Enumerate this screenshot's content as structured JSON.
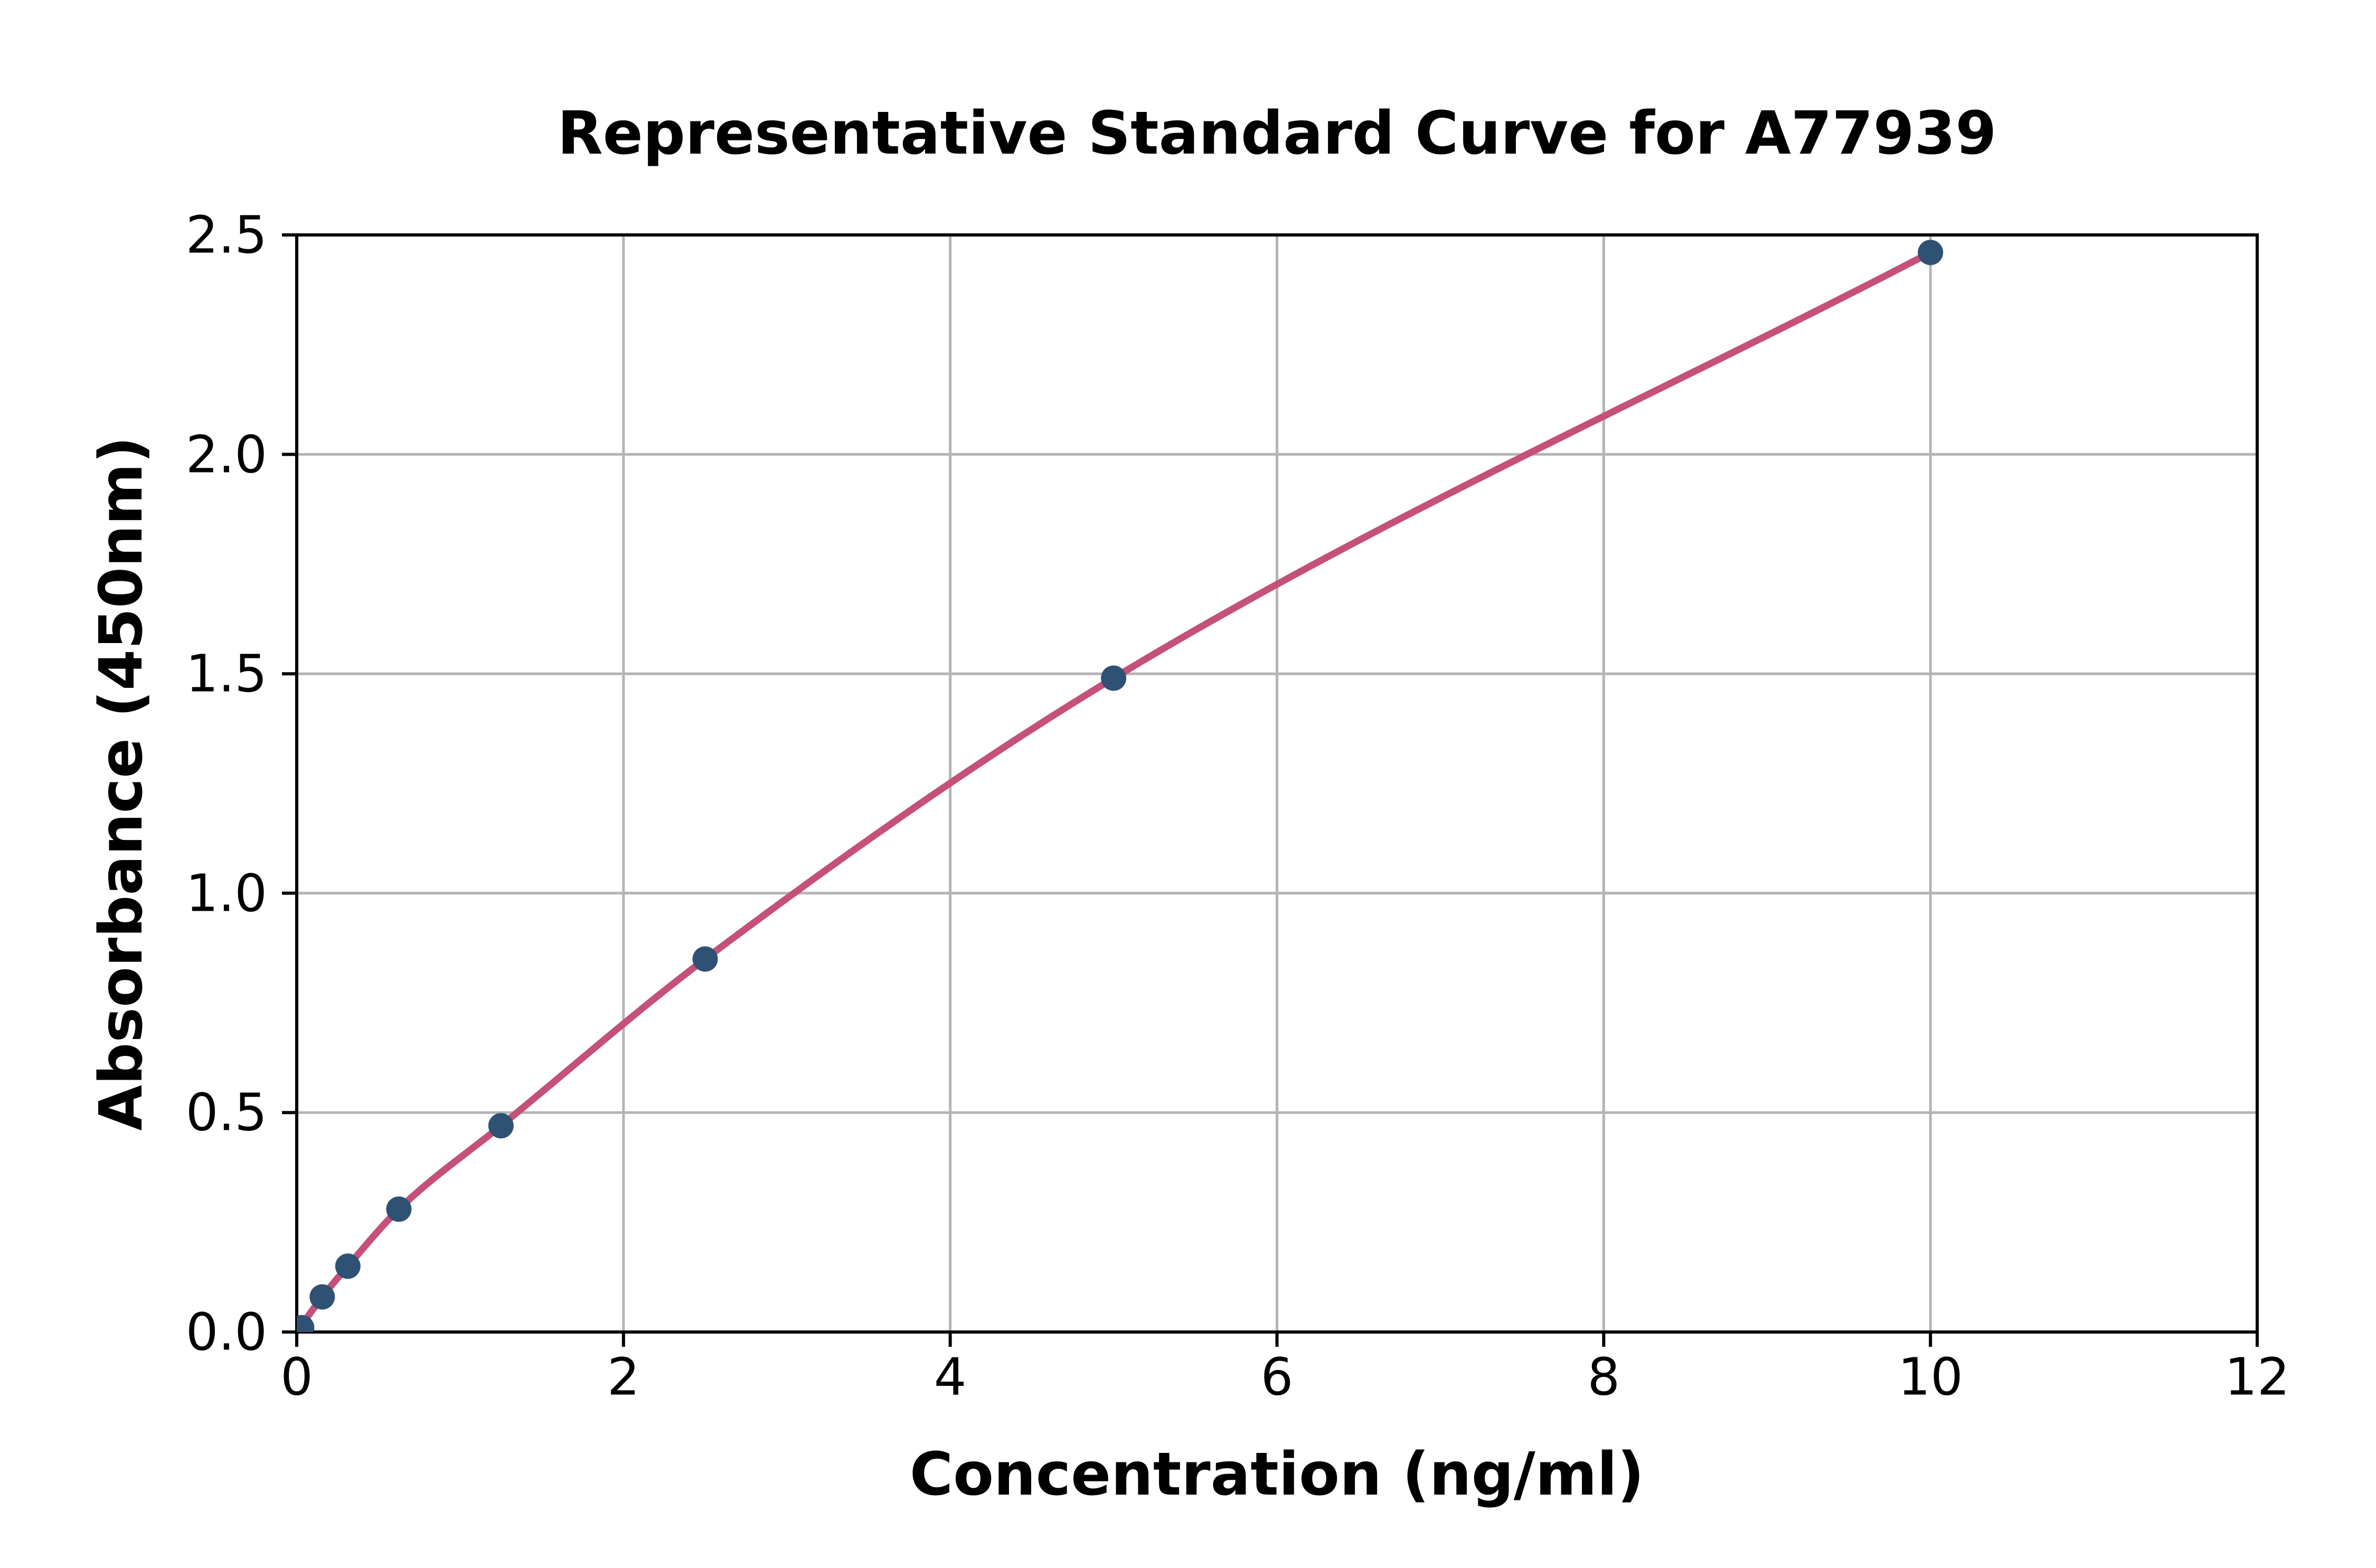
{
  "figure": {
    "background": "#ffffff"
  },
  "chart_data": {
    "type": "scatter",
    "title": "Representative Standard Curve for A77939",
    "xlabel": "Concentration (ng/ml)",
    "ylabel": "Absorbance (450nm)",
    "xlim": [
      0,
      12
    ],
    "ylim": [
      0,
      2.5
    ],
    "grid": true,
    "legend": "none",
    "xticks": {
      "values": [
        0,
        2,
        4,
        6,
        8,
        10,
        12
      ],
      "labels": [
        "0",
        "2",
        "4",
        "6",
        "8",
        "10",
        "12"
      ]
    },
    "yticks": {
      "values": [
        0,
        0.5,
        1.0,
        1.5,
        2.0,
        2.5
      ],
      "labels": [
        "0.0",
        "0.5",
        "1.0",
        "1.5",
        "2.0",
        "2.5"
      ]
    },
    "series": [
      {
        "name": "standard-points",
        "type": "scatter",
        "marker_color": "#2f5173",
        "marker_radius": 24,
        "points": [
          [
            0.03,
            0.01
          ],
          [
            0.156,
            0.08
          ],
          [
            0.313,
            0.15
          ],
          [
            0.625,
            0.28
          ],
          [
            1.25,
            0.47
          ],
          [
            2.5,
            0.85
          ],
          [
            5,
            1.49
          ],
          [
            10,
            2.46
          ]
        ]
      },
      {
        "name": "fit-curve",
        "type": "line",
        "line_color": "#c5507a",
        "line_width": 13,
        "points": [
          [
            0,
            0.0
          ],
          [
            0.156,
            0.08
          ],
          [
            0.313,
            0.15
          ],
          [
            0.625,
            0.28
          ],
          [
            1.25,
            0.47
          ],
          [
            2.5,
            0.85
          ],
          [
            5,
            1.49
          ],
          [
            10,
            2.46
          ]
        ]
      }
    ],
    "colors": {
      "grid": "#b4b4b4",
      "spine": "#000000",
      "tick": "#000000",
      "text": "#000000"
    }
  }
}
